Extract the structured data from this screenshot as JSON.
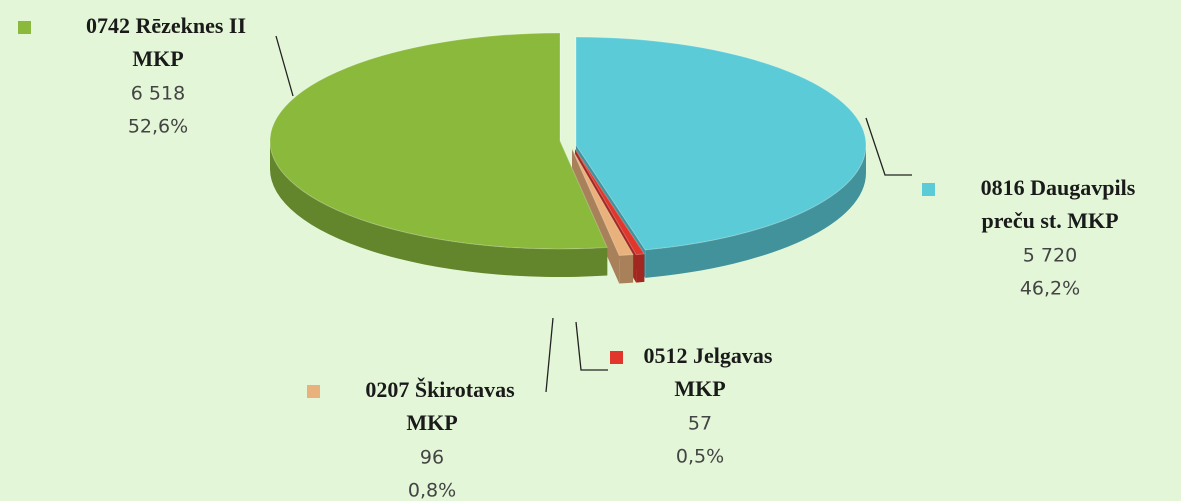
{
  "chart_data": {
    "type": "pie3d",
    "categories": [
      [
        "0816 Daugavpils",
        "preču st. MKP"
      ],
      [
        "0512 Jelgavas",
        "MKP"
      ],
      [
        "0207 Škirotavas",
        "MKP"
      ],
      [
        "0742 Rēzeknes II",
        "MKP"
      ]
    ],
    "values": [
      5720,
      57,
      96,
      6518
    ],
    "value_labels": [
      "5 720",
      "57",
      "96",
      "6 518"
    ],
    "percentages": [
      46.2,
      0.5,
      0.8,
      52.6
    ],
    "percentage_labels": [
      "46,2%",
      "0,5%",
      "0,8%",
      "52,6%"
    ],
    "colors": [
      "#5ccbd8",
      "#e0362c",
      "#e9b27c",
      "#8ab93c"
    ]
  }
}
